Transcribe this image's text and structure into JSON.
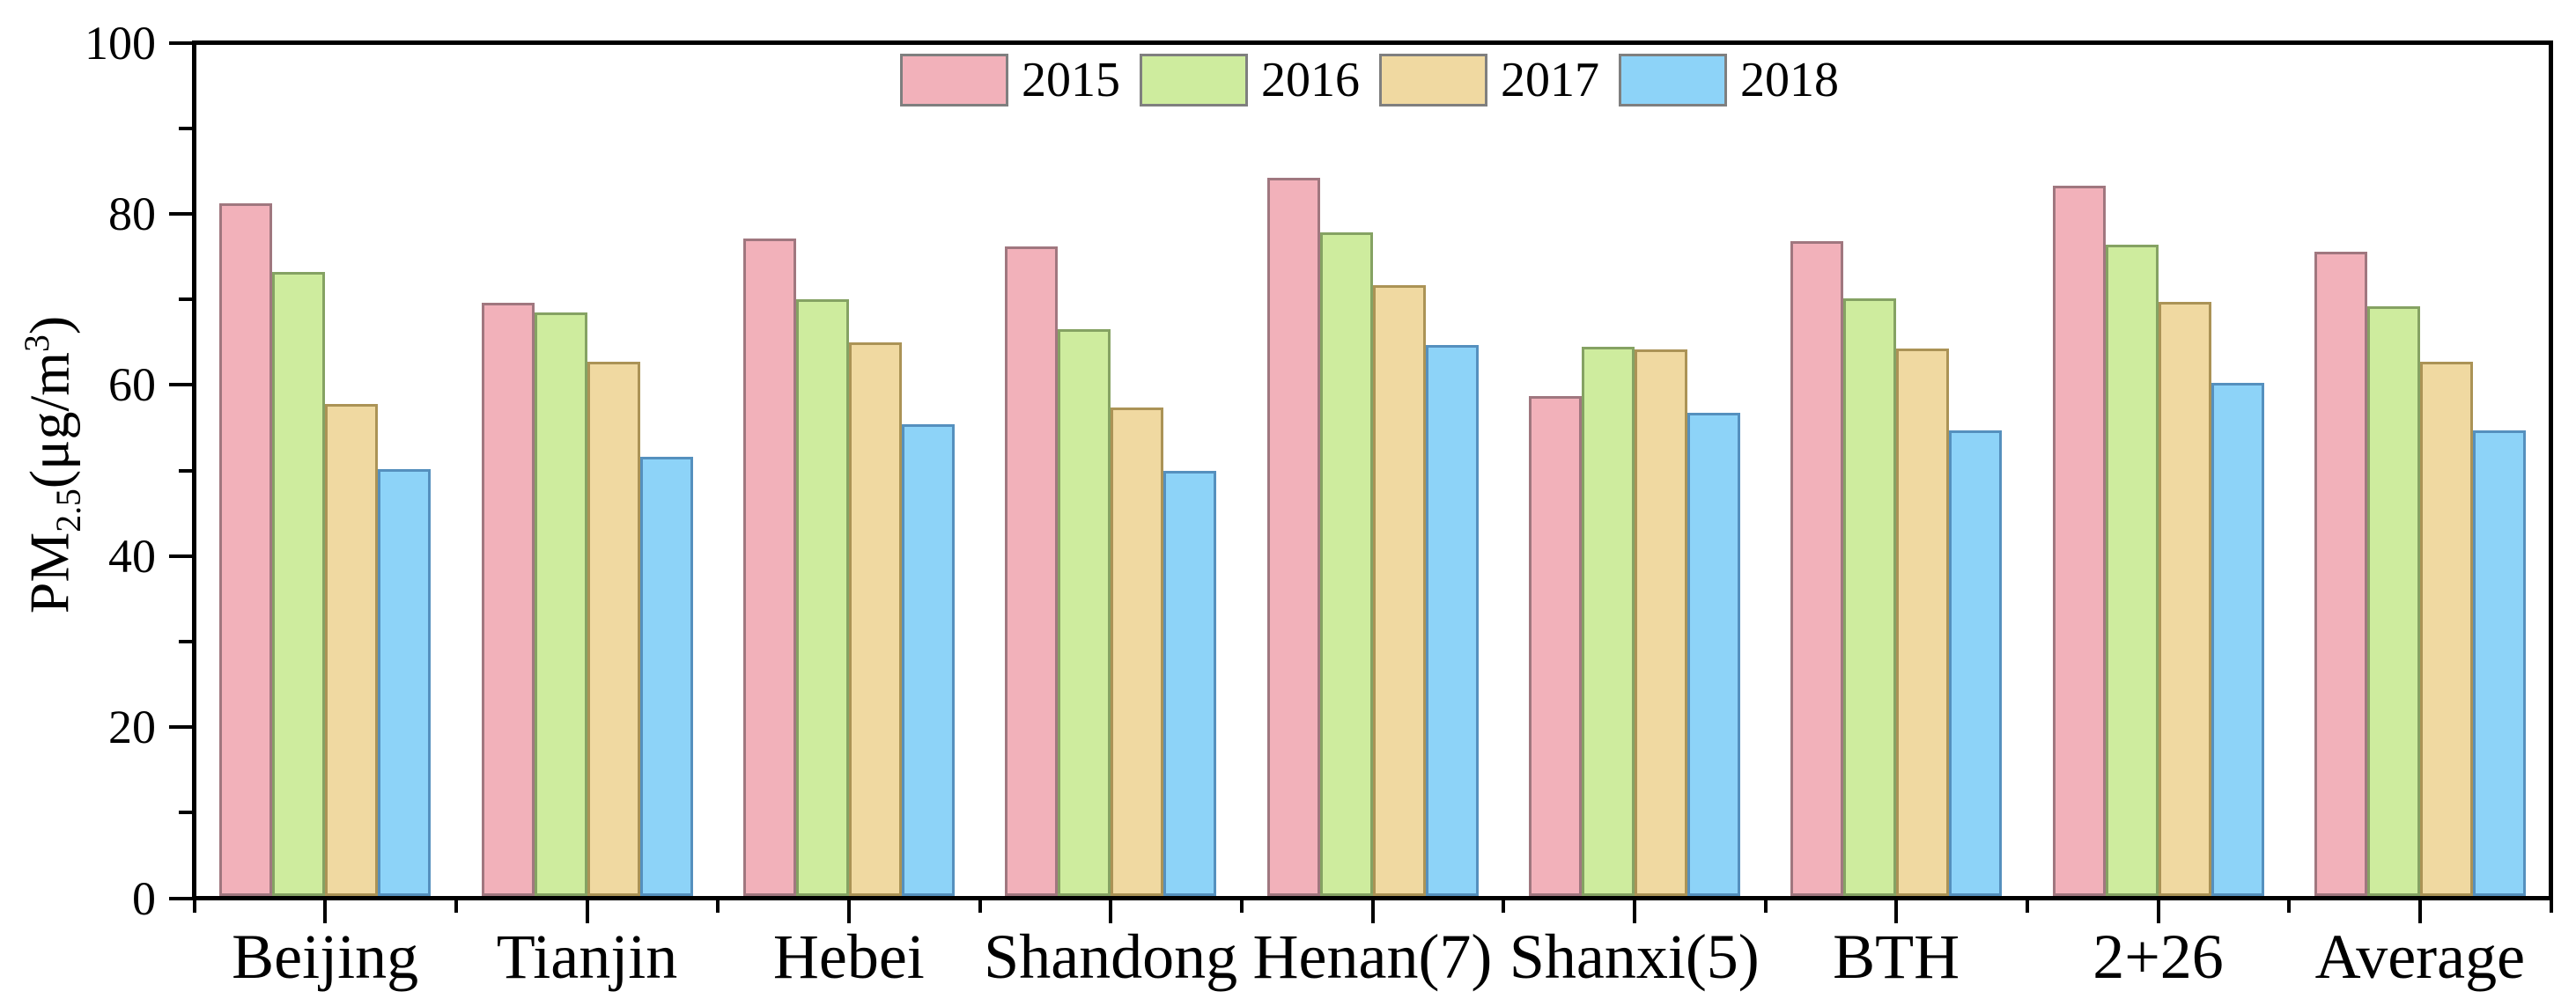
{
  "chart_data": {
    "type": "bar",
    "title": "",
    "categories": [
      "Beijing",
      "Tianjin",
      "Hebei",
      "Shandong",
      "Henan(7)",
      "Shanxi(5)",
      "BTH",
      "2+26",
      "Average"
    ],
    "series": [
      {
        "name": "2015",
        "fill": "#F2B1BA",
        "stroke": "#A0777F",
        "values": [
          81.2,
          69.6,
          77.1,
          76.2,
          84.2,
          58.7,
          76.8,
          83.3,
          75.6
        ]
      },
      {
        "name": "2016",
        "fill": "#CEEC9E",
        "stroke": "#85A263",
        "values": [
          73.2,
          68.5,
          70.0,
          66.5,
          77.8,
          64.5,
          70.1,
          76.4,
          69.2
        ]
      },
      {
        "name": "2017",
        "fill": "#F0D9A1",
        "stroke": "#AB9356",
        "values": [
          57.8,
          62.7,
          65.0,
          57.4,
          71.7,
          64.1,
          64.3,
          69.7,
          62.7
        ]
      },
      {
        "name": "2018",
        "fill": "#8DD3F8",
        "stroke": "#5590BE",
        "values": [
          50.2,
          51.6,
          55.4,
          50.0,
          64.7,
          56.7,
          54.7,
          60.2,
          54.7
        ]
      }
    ],
    "xlabel": "",
    "ylabel": {
      "prefix": "PM",
      "sub": "2.5",
      "mid": "(μg/m",
      "sup": "3",
      "suffix": ")"
    },
    "ylim": [
      0,
      100
    ],
    "yticks": [
      0,
      20,
      40,
      60,
      80,
      100
    ],
    "yminorticks": [
      10,
      30,
      50,
      70,
      90
    ],
    "legend_entries": [
      "2015",
      "2016",
      "2017",
      "2018"
    ],
    "legend_position": "top-center-inside",
    "grid": false,
    "axis_color": "#000000",
    "background_color": "#FFFFFF"
  }
}
